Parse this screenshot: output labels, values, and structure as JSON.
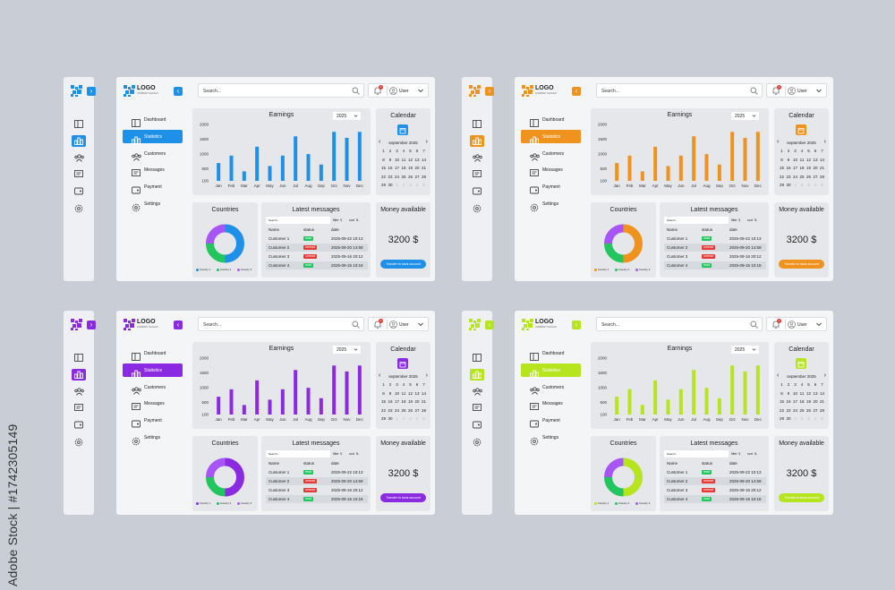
{
  "watermark": "Adobe Stock | #1742305149",
  "logo": {
    "title": "LOGO",
    "subtitle": "COMPANY SLOGAN"
  },
  "nav": [
    "Dashboard",
    "Statistics",
    "Customers",
    "Messages",
    "Payment",
    "Settings"
  ],
  "search_placeholder": "Search...",
  "notification_count": "1",
  "user_label": "User",
  "earnings": {
    "title": "Earnings",
    "year": "2025",
    "chart_data": {
      "type": "bar",
      "categories": [
        "Jan",
        "Feb",
        "Mar",
        "Apr",
        "May",
        "Jun",
        "Jul",
        "Aug",
        "Sep",
        "Oct",
        "Nov",
        "Dec"
      ],
      "values": [
        700,
        950,
        420,
        1250,
        600,
        950,
        1600,
        1000,
        650,
        1750,
        1550,
        1750
      ],
      "y_ticks": [
        "2000",
        "1500",
        "1000",
        "500",
        "100"
      ],
      "ylim": [
        100,
        2000
      ]
    }
  },
  "calendar": {
    "title": "Calendar",
    "month": "september 2025",
    "prev": "‹",
    "next": "›",
    "days": [
      1,
      2,
      3,
      4,
      5,
      6,
      7,
      8,
      9,
      10,
      11,
      12,
      13,
      14,
      15,
      16,
      17,
      18,
      19,
      20,
      21,
      22,
      23,
      24,
      25,
      26,
      27,
      28,
      29,
      30
    ],
    "trailing": [
      1,
      2,
      3,
      4,
      5
    ]
  },
  "countries": {
    "title": "Countries",
    "legend": [
      "Country 1",
      "Country 2",
      "Country 3"
    ],
    "shares": [
      0.5,
      0.25,
      0.25
    ],
    "colors": [
      "#22c55e",
      "#a855f7"
    ]
  },
  "messages": {
    "title": "Latest messages",
    "search_placeholder": "Search...",
    "filter_label": "filter",
    "sort_label": "sort",
    "columns": [
      "Name",
      "status",
      "date"
    ],
    "rows": [
      {
        "name": "Customer 1",
        "status": "read",
        "date": "2025-09-22 10:13"
      },
      {
        "name": "Customer 2",
        "status": "unread",
        "date": "2025-09-20 14:59"
      },
      {
        "name": "Customer 3",
        "status": "unread",
        "date": "2025-09-16 20:12"
      },
      {
        "name": "Customer 4",
        "status": "read",
        "date": "2025-09-15 10:18"
      }
    ],
    "status_colors": {
      "read": "#22c55e",
      "unread": "#e53935"
    }
  },
  "money": {
    "title": "Money available",
    "amount": "3200 $",
    "button": "Transfer to bank account"
  },
  "variants": [
    {
      "accent": "#1e90e8",
      "donut_main": "#1e90e8"
    },
    {
      "accent": "#f0921e",
      "donut_main": "#f0921e"
    },
    {
      "accent": "#8a2be2",
      "donut_main": "#8a2be2"
    },
    {
      "accent": "#b6e41e",
      "donut_main": "#b6e41e"
    }
  ]
}
